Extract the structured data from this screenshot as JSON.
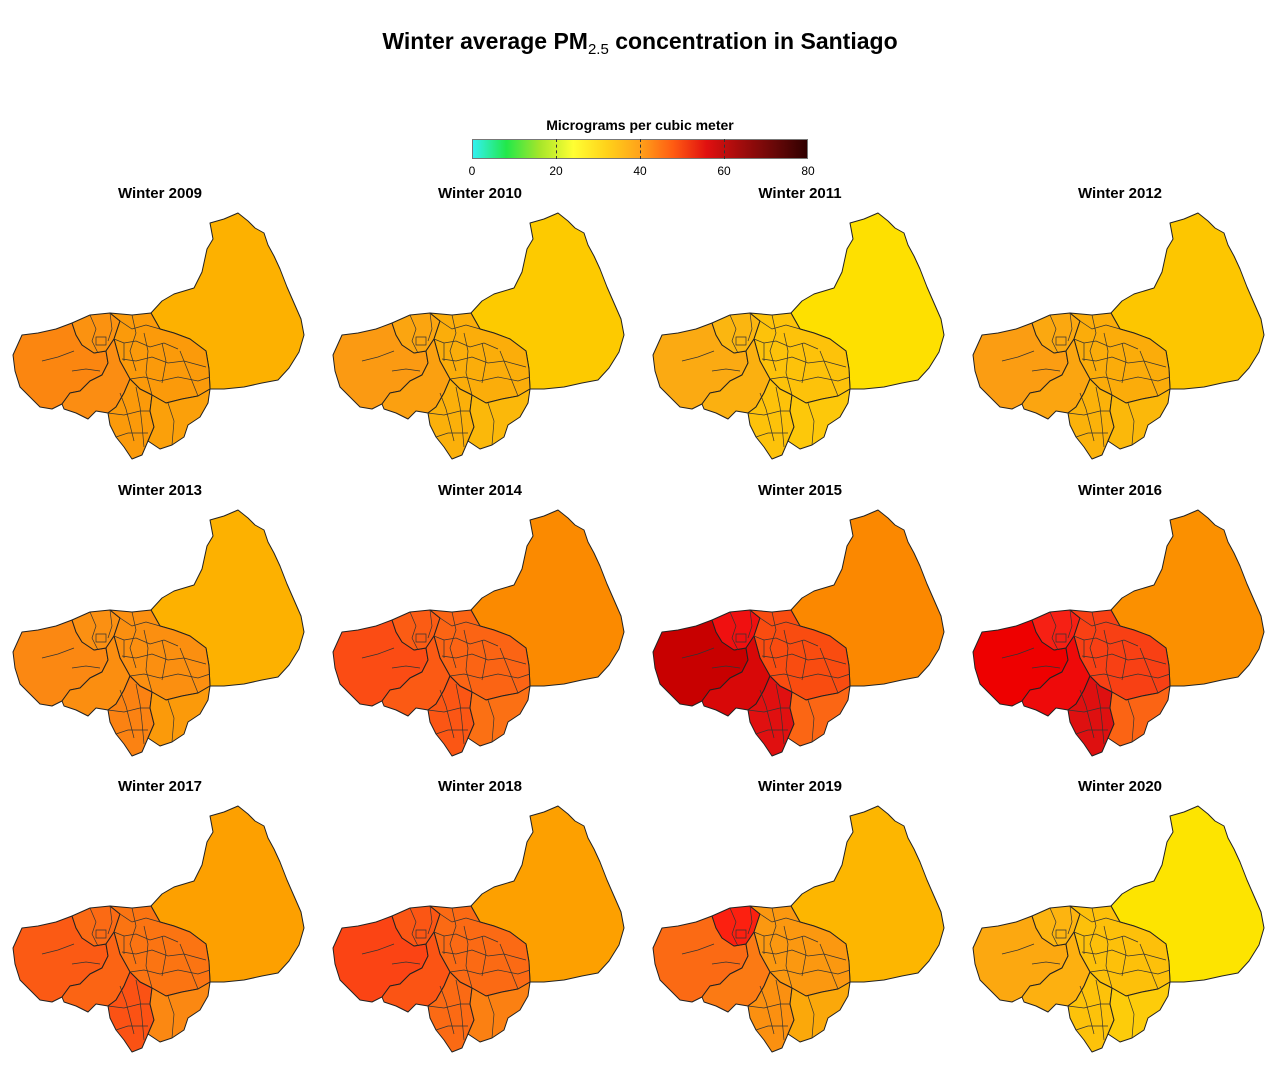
{
  "title": {
    "main": "Winter average PM",
    "sub": "2.5",
    "rest": " concentration in Santiago"
  },
  "legend": {
    "title": "Micrograms per cubic meter",
    "min": 0,
    "max": 80,
    "tick_labels": [
      "0",
      "20",
      "40",
      "60",
      "80"
    ],
    "tick_values": [
      0,
      20,
      40,
      60,
      80
    ],
    "dashed_ticks": [
      20,
      40,
      60
    ],
    "colors": [
      "#33f0f0",
      "#22e84a",
      "#a6e62a",
      "#ffff33",
      "#ffd21a",
      "#ffa21a",
      "#ff5b12",
      "#e01010",
      "#a30c0c",
      "#6a0808",
      "#300000"
    ]
  },
  "panels": [
    {
      "title": "Winter 2009",
      "colors": {
        "east": "#fdb100",
        "center": "#fb9a0a",
        "west": "#fb8610",
        "southwest": "#fb8d12",
        "north": "#fb9210",
        "south": "#fb9a0a",
        "southeast": "#fba00a"
      }
    },
    {
      "title": "Winter 2010",
      "colors": {
        "east": "#fdca00",
        "center": "#fbad0a",
        "west": "#fb9a12",
        "southwest": "#fba010",
        "north": "#fba510",
        "south": "#fbb00a",
        "southeast": "#fbb80a"
      }
    },
    {
      "title": "Winter 2011",
      "colors": {
        "east": "#fee000",
        "center": "#fdc20a",
        "west": "#fbaa12",
        "southwest": "#fbb010",
        "north": "#fbb610",
        "south": "#fdc20a",
        "southeast": "#fdc80a"
      }
    },
    {
      "title": "Winter 2012",
      "colors": {
        "east": "#fdc600",
        "center": "#fbac0a",
        "west": "#fb9d12",
        "southwest": "#fba510",
        "north": "#fba810",
        "south": "#fbb20a",
        "southeast": "#fbb80a"
      }
    },
    {
      "title": "Winter 2013",
      "colors": {
        "east": "#fdb100",
        "center": "#fb8f10",
        "west": "#fb8812",
        "southwest": "#fb8e10",
        "north": "#fb9012",
        "south": "#fb8212",
        "southeast": "#fb9a0a"
      }
    },
    {
      "title": "Winter 2014",
      "colors": {
        "east": "#fb8a00",
        "center": "#fb6414",
        "west": "#fb4c14",
        "southwest": "#fb5a14",
        "north": "#fb5c14",
        "south": "#fb5614",
        "southeast": "#fb7014"
      }
    },
    {
      "title": "Winter 2015",
      "colors": {
        "east": "#fb8800",
        "center": "#f94c10",
        "west": "#c80000",
        "southwest": "#d80808",
        "north": "#f01010",
        "south": "#e01010",
        "southeast": "#fb6614"
      }
    },
    {
      "title": "Winter 2016",
      "colors": {
        "east": "#fb9000",
        "center": "#f84014",
        "west": "#ee0000",
        "southwest": "#ee0a0a",
        "north": "#f62014",
        "south": "#de1010",
        "southeast": "#fb6414"
      }
    },
    {
      "title": "Winter 2017",
      "colors": {
        "east": "#fda000",
        "center": "#fb7412",
        "west": "#fb5a14",
        "southwest": "#fb6414",
        "north": "#fb6a14",
        "south": "#fb5214",
        "southeast": "#fb8812"
      }
    },
    {
      "title": "Winter 2018",
      "colors": {
        "east": "#fda000",
        "center": "#fb6a14",
        "west": "#fb4414",
        "southwest": "#fb5414",
        "north": "#fb5614",
        "south": "#fb6a14",
        "southeast": "#fb8012"
      }
    },
    {
      "title": "Winter 2019",
      "colors": {
        "east": "#fdb600",
        "center": "#fb9810",
        "west": "#fb6a14",
        "southwest": "#fb7a14",
        "north": "#fc2010",
        "south": "#fb9010",
        "southeast": "#fba80a"
      }
    },
    {
      "title": "Winter 2020",
      "colors": {
        "east": "#fde400",
        "center": "#fdc00a",
        "west": "#fca810",
        "southwest": "#fdb010",
        "north": "#fdb410",
        "south": "#fdc20a",
        "southeast": "#fdcc0a"
      }
    }
  ]
}
